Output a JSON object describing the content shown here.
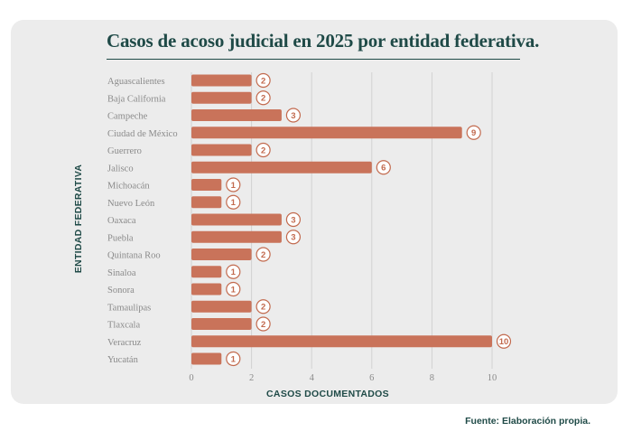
{
  "chart_data": {
    "type": "bar",
    "orientation": "horizontal",
    "title": "Casos de acoso judicial en 2025 por entidad federativa.",
    "xlabel": "CASOS DOCUMENTADOS",
    "ylabel": "ENTIDAD FEDERATIVA",
    "categories": [
      "Aguascalientes",
      "Baja California",
      "Campeche",
      "Ciudad de México",
      "Guerrero",
      "Jalisco",
      "Michoacán",
      "Nuevo León",
      "Oaxaca",
      "Puebla",
      "Quintana Roo",
      "Sinaloa",
      "Sonora",
      "Tamaulipas",
      "Tlaxcala",
      "Veracruz",
      "Yucatán"
    ],
    "values": [
      2,
      2,
      3,
      9,
      2,
      6,
      1,
      1,
      3,
      3,
      2,
      1,
      1,
      2,
      2,
      10,
      1
    ],
    "xlim": [
      0,
      10
    ],
    "xticks": [
      0,
      2,
      4,
      6,
      8,
      10
    ],
    "grid": "vertical",
    "bar_color": "#c9735a",
    "label_color": "#c26a4e"
  },
  "source": "Fuente: Elaboración propia."
}
